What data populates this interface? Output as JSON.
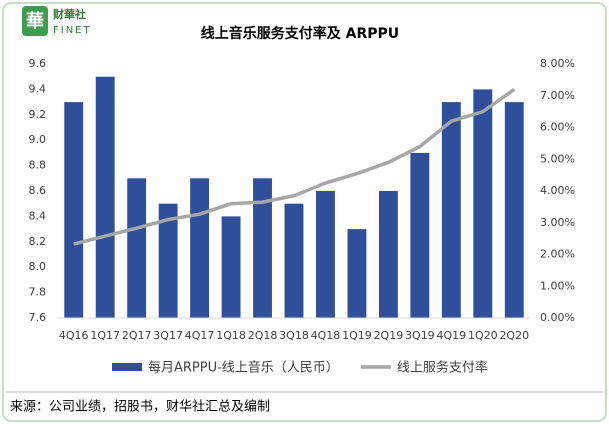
{
  "logo": {
    "mark": "華",
    "name": "财華社",
    "latin": "FINET"
  },
  "chart_data": {
    "type": "bar-line",
    "title": "线上音乐服务支付率及 ARPPU",
    "categories": [
      "4Q16",
      "1Q17",
      "2Q17",
      "3Q17",
      "4Q17",
      "1Q18",
      "2Q18",
      "3Q18",
      "4Q18",
      "1Q19",
      "2Q19",
      "3Q19",
      "4Q19",
      "1Q20",
      "2Q20"
    ],
    "series": [
      {
        "name": "每月ARPPU-线上音乐（人民币）",
        "type": "bar",
        "color": "#2f4f9a",
        "values": [
          9.3,
          9.5,
          8.7,
          8.5,
          8.7,
          8.4,
          8.7,
          8.5,
          8.6,
          8.3,
          8.6,
          8.9,
          9.3,
          9.4,
          9.3
        ]
      },
      {
        "name": "线上服务支付率",
        "type": "line",
        "axis": "y2",
        "color": "#a6a6a6",
        "values": [
          2.33,
          2.58,
          2.83,
          3.1,
          3.27,
          3.6,
          3.65,
          3.85,
          4.25,
          4.55,
          4.9,
          5.4,
          6.2,
          6.5,
          7.2
        ]
      }
    ],
    "ylim": [
      7.6,
      9.6
    ],
    "yticks": [
      {
        "value": 7.6,
        "label": "7.6"
      },
      {
        "value": 7.8,
        "label": "7.8"
      },
      {
        "value": 8,
        "label": "8.0"
      },
      {
        "value": 8.2,
        "label": "8.2"
      },
      {
        "value": 8.4,
        "label": "8.4"
      },
      {
        "value": 8.6,
        "label": "8.6"
      },
      {
        "value": 8.8,
        "label": "8.8"
      },
      {
        "value": 9,
        "label": "9.0"
      },
      {
        "value": 9.2,
        "label": "9.2"
      },
      {
        "value": 9.4,
        "label": "9.4"
      },
      {
        "value": 9.6,
        "label": "9.6"
      }
    ],
    "y2lim": [
      0,
      8
    ],
    "y2ticks": [
      {
        "value": 0,
        "label": "0.00%"
      },
      {
        "value": 1,
        "label": "1.00%"
      },
      {
        "value": 2,
        "label": "2.00%"
      },
      {
        "value": 3,
        "label": "3.00%"
      },
      {
        "value": 4,
        "label": "4.00%"
      },
      {
        "value": 5,
        "label": "5.00%"
      },
      {
        "value": 6,
        "label": "6.00%"
      },
      {
        "value": 7,
        "label": "7.00%"
      },
      {
        "value": 8,
        "label": "8.00%"
      }
    ],
    "legend": "bottom",
    "source": "来源：公司业绩，招股书，财华社汇总及编制"
  }
}
